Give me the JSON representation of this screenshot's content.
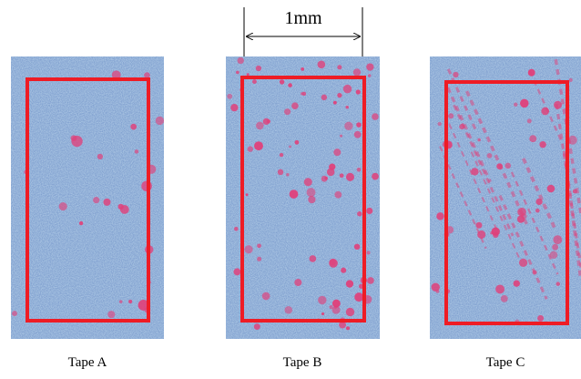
{
  "scale_bar": {
    "label": "1mm"
  },
  "panels": [
    {
      "label": "Tape A"
    },
    {
      "label": "Tape B"
    },
    {
      "label": "Tape C"
    }
  ]
}
